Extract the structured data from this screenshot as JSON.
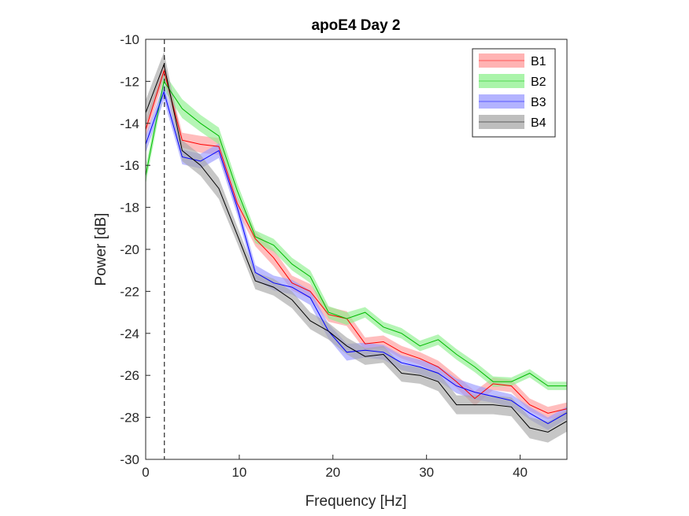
{
  "chart_data": {
    "type": "line",
    "title": "apoE4 Day 2",
    "xlabel": "Frequency [Hz]",
    "ylabel": "Power [dB]",
    "xlim": [
      0,
      45
    ],
    "ylim": [
      -30,
      -10
    ],
    "xticks": [
      0,
      10,
      20,
      30,
      40
    ],
    "yticks": [
      -30,
      -28,
      -26,
      -24,
      -22,
      -20,
      -18,
      -16,
      -14,
      -12,
      -10
    ],
    "grid": false,
    "legend_position": "top-right",
    "vline_x": 2,
    "x": [
      0,
      1.95,
      3.9,
      5.86,
      7.81,
      9.77,
      11.72,
      13.67,
      15.63,
      17.58,
      19.53,
      21.48,
      23.44,
      25.39,
      27.34,
      29.3,
      31.25,
      33.2,
      35.16,
      37.11,
      39.06,
      41.02,
      42.97,
      44.92,
      45
    ],
    "series": [
      {
        "name": "B1",
        "color": "#ff0000",
        "band_color": "#ff9a9a",
        "values": [
          -14.3,
          -11.5,
          -14.8,
          -15.0,
          -15.1,
          -17.8,
          -19.5,
          -20.4,
          -21.6,
          -22.0,
          -23.1,
          -23.3,
          -24.5,
          -24.4,
          -24.9,
          -25.2,
          -25.6,
          -26.3,
          -27.1,
          -26.4,
          -26.5,
          -27.4,
          -27.8,
          -27.6,
          -27.6
        ],
        "band": [
          0.4,
          0.4,
          0.35,
          0.4,
          0.4,
          0.35,
          0.35,
          0.4,
          0.35,
          0.35,
          0.35,
          0.35,
          0.3,
          0.3,
          0.3,
          0.3,
          0.3,
          0.3,
          0.35,
          0.3,
          0.3,
          0.3,
          0.3,
          0.3,
          0.3
        ]
      },
      {
        "name": "B2",
        "color": "#00bb00",
        "band_color": "#8df08d",
        "values": [
          -16.5,
          -12.0,
          -13.3,
          -14.0,
          -14.6,
          -17.2,
          -19.4,
          -19.8,
          -20.7,
          -21.3,
          -23.0,
          -23.3,
          -23.0,
          -23.7,
          -24.0,
          -24.6,
          -24.3,
          -25.0,
          -25.6,
          -26.3,
          -26.3,
          -25.9,
          -26.5,
          -26.5,
          -26.5
        ],
        "band": [
          0.4,
          0.4,
          0.45,
          0.4,
          0.4,
          0.35,
          0.3,
          0.3,
          0.3,
          0.3,
          0.3,
          0.3,
          0.25,
          0.25,
          0.25,
          0.25,
          0.25,
          0.25,
          0.25,
          0.25,
          0.2,
          0.2,
          0.2,
          0.2,
          0.2
        ]
      },
      {
        "name": "B3",
        "color": "#0000ff",
        "band_color": "#9a9aff",
        "values": [
          -15.0,
          -12.5,
          -15.6,
          -15.8,
          -15.3,
          -18.0,
          -21.1,
          -21.6,
          -21.8,
          -22.3,
          -23.9,
          -24.9,
          -24.8,
          -24.9,
          -25.4,
          -25.6,
          -25.9,
          -26.5,
          -26.8,
          -27.0,
          -27.2,
          -27.8,
          -28.3,
          -27.8,
          -27.8
        ],
        "band": [
          0.4,
          0.4,
          0.35,
          0.35,
          0.35,
          0.35,
          0.35,
          0.35,
          0.35,
          0.35,
          0.35,
          0.4,
          0.35,
          0.35,
          0.35,
          0.35,
          0.35,
          0.35,
          0.35,
          0.3,
          0.3,
          0.3,
          0.3,
          0.3,
          0.3
        ]
      },
      {
        "name": "B4",
        "color": "#000000",
        "band_color": "#a8a8a8",
        "values": [
          -13.5,
          -11.2,
          -15.3,
          -16.0,
          -17.1,
          -19.3,
          -21.5,
          -21.8,
          -22.4,
          -23.4,
          -23.9,
          -24.6,
          -25.1,
          -25.0,
          -25.9,
          -26.0,
          -26.3,
          -27.4,
          -27.4,
          -27.4,
          -27.5,
          -28.5,
          -28.7,
          -28.2,
          -28.2
        ],
        "band": [
          0.6,
          0.6,
          0.5,
          0.5,
          0.5,
          0.4,
          0.4,
          0.4,
          0.4,
          0.4,
          0.4,
          0.4,
          0.4,
          0.4,
          0.4,
          0.4,
          0.45,
          0.45,
          0.45,
          0.45,
          0.45,
          0.5,
          0.5,
          0.5,
          0.5
        ]
      }
    ]
  }
}
